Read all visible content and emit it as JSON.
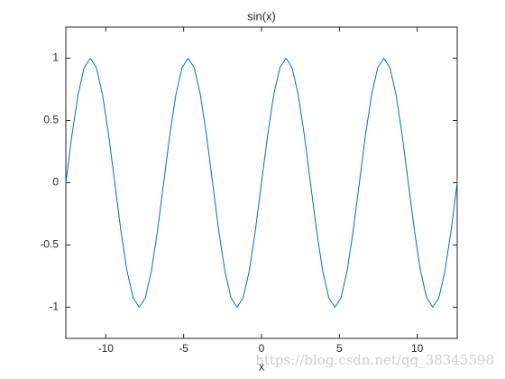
{
  "chart_data": {
    "type": "line",
    "title": "sin(x)",
    "x_label": "x",
    "x": [
      -12.566,
      -12.174,
      -11.781,
      -11.388,
      -10.996,
      -10.603,
      -10.21,
      -9.817,
      -9.425,
      -9.032,
      -8.639,
      -8.247,
      -7.854,
      -7.461,
      -7.069,
      -6.676,
      -6.283,
      -5.89,
      -5.498,
      -5.105,
      -4.712,
      -4.32,
      -3.927,
      -3.534,
      -3.142,
      -2.749,
      -2.356,
      -1.963,
      -1.571,
      -1.178,
      -0.785,
      -0.393,
      0,
      0.393,
      0.785,
      1.178,
      1.571,
      1.963,
      2.356,
      2.749,
      3.142,
      3.534,
      3.927,
      4.32,
      4.712,
      5.105,
      5.498,
      5.89,
      6.283,
      6.676,
      7.069,
      7.461,
      7.854,
      8.247,
      8.639,
      9.032,
      9.425,
      9.817,
      10.21,
      10.603,
      10.996,
      11.388,
      11.781,
      12.174,
      12.566
    ],
    "series": [
      {
        "name": "sin(x)",
        "color": "#0072bd",
        "values": [
          0,
          0.383,
          0.707,
          0.924,
          1,
          0.924,
          0.707,
          0.383,
          0,
          -0.383,
          -0.707,
          -0.924,
          -1,
          -0.924,
          -0.707,
          -0.383,
          0,
          0.383,
          0.707,
          0.924,
          1,
          0.924,
          0.707,
          0.383,
          0,
          -0.383,
          -0.707,
          -0.924,
          -1,
          -0.924,
          -0.707,
          -0.383,
          0,
          0.383,
          0.707,
          0.924,
          1,
          0.924,
          0.707,
          0.383,
          0,
          -0.383,
          -0.707,
          -0.924,
          -1,
          -0.924,
          -0.707,
          -0.383,
          0,
          0.383,
          0.707,
          0.924,
          1,
          0.924,
          0.707,
          0.383,
          0,
          -0.383,
          -0.707,
          -0.924,
          -1,
          -0.924,
          -0.707,
          -0.383,
          0
        ]
      }
    ],
    "xlim": [
      -12.566,
      12.566
    ],
    "xticks": [
      -10,
      -5,
      0,
      5,
      10
    ],
    "ylim": [
      -1.25,
      1.25
    ],
    "yticks": [
      -1,
      -0.5,
      0,
      0.5,
      1
    ],
    "watermark": "https://blog.csdn.net/qq_38345598"
  }
}
